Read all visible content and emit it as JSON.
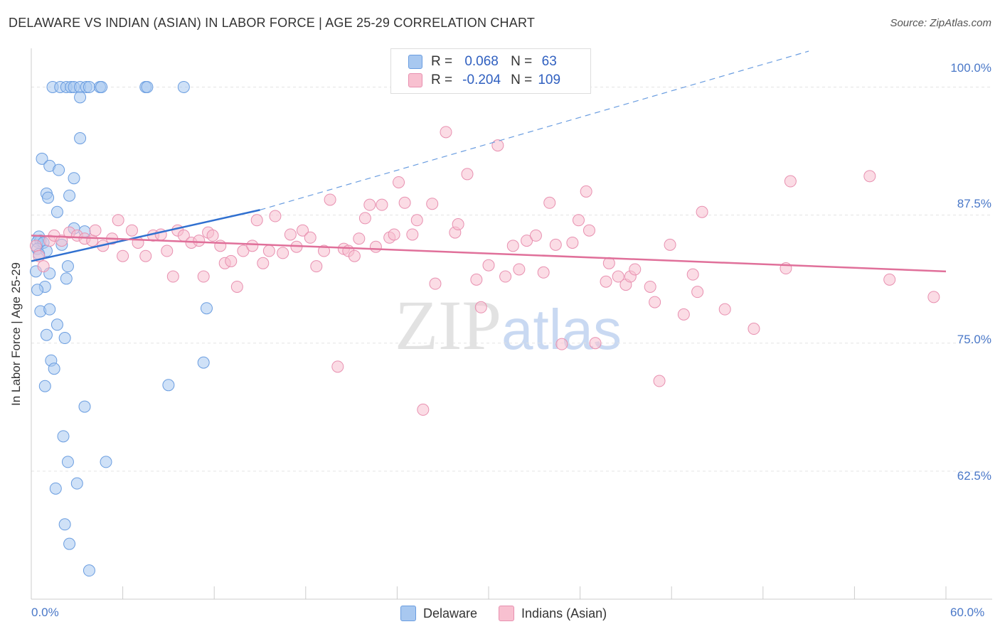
{
  "title": "DELAWARE VS INDIAN (ASIAN) IN LABOR FORCE | AGE 25-29 CORRELATION CHART",
  "source": "Source: ZipAtlas.com",
  "watermark": {
    "main": "ZIP",
    "sub": "atlas"
  },
  "legend": {
    "r_label": "R =",
    "n_label": "N =",
    "rows": [
      {
        "r": "0.068",
        "n": "63",
        "color": "#a8c8f0",
        "border": "#6a9de0"
      },
      {
        "r": "-0.204",
        "n": "109",
        "color": "#f8c0d0",
        "border": "#e890b0"
      }
    ]
  },
  "chart_data": {
    "type": "scatter",
    "xlabel": "",
    "ylabel": "In Labor Force | Age 25-29",
    "xlim": [
      0,
      60
    ],
    "ylim": [
      50,
      103.5
    ],
    "x_tick_labels": [
      "0.0%",
      "60.0%"
    ],
    "y_ticks": [
      62.5,
      75.0,
      87.5,
      100.0
    ],
    "y_tick_labels": [
      "62.5%",
      "75.0%",
      "87.5%",
      "100.0%"
    ],
    "grid": true,
    "series": [
      {
        "name": "Delaware",
        "color": "#a8c8f0",
        "stroke": "#6a9de0",
        "trend": {
          "x0": 0,
          "y0": 83.0,
          "x1": 15,
          "y1": 88.0,
          "dash_to_x": 51,
          "dash_to_y": 103.5
        },
        "points": [
          [
            1.4,
            100
          ],
          [
            1.9,
            100
          ],
          [
            2.3,
            100
          ],
          [
            2.6,
            100
          ],
          [
            2.8,
            100
          ],
          [
            3.2,
            100
          ],
          [
            3.6,
            100
          ],
          [
            3.8,
            100
          ],
          [
            4.5,
            100
          ],
          [
            4.6,
            100
          ],
          [
            7.5,
            100
          ],
          [
            7.6,
            100
          ],
          [
            10.0,
            100
          ],
          [
            3.2,
            99
          ],
          [
            3.2,
            95
          ],
          [
            0.7,
            93
          ],
          [
            1.2,
            92.3
          ],
          [
            1.8,
            91.9
          ],
          [
            2.8,
            91.1
          ],
          [
            1.0,
            89.6
          ],
          [
            1.1,
            89.2
          ],
          [
            2.5,
            89.4
          ],
          [
            1.7,
            87.8
          ],
          [
            2.8,
            86.2
          ],
          [
            3.5,
            85.9
          ],
          [
            0.5,
            85.4
          ],
          [
            0.6,
            85.0
          ],
          [
            0.4,
            84.9
          ],
          [
            0.8,
            84.8
          ],
          [
            2.0,
            84.6
          ],
          [
            0.4,
            84.2
          ],
          [
            1.0,
            84.0
          ],
          [
            0.5,
            83.7
          ],
          [
            2.4,
            82.5
          ],
          [
            0.3,
            82.0
          ],
          [
            1.2,
            81.8
          ],
          [
            2.3,
            81.3
          ],
          [
            0.9,
            80.5
          ],
          [
            0.4,
            80.2
          ],
          [
            0.6,
            78.1
          ],
          [
            1.2,
            78.3
          ],
          [
            11.5,
            78.4
          ],
          [
            1.7,
            76.8
          ],
          [
            1.0,
            75.8
          ],
          [
            2.2,
            75.5
          ],
          [
            1.3,
            73.3
          ],
          [
            1.5,
            72.5
          ],
          [
            11.3,
            73.1
          ],
          [
            0.9,
            70.8
          ],
          [
            9.0,
            70.9
          ],
          [
            3.5,
            68.8
          ],
          [
            2.1,
            65.9
          ],
          [
            2.4,
            63.4
          ],
          [
            4.9,
            63.4
          ],
          [
            1.6,
            60.8
          ],
          [
            3.0,
            61.3
          ],
          [
            2.2,
            57.3
          ],
          [
            2.5,
            55.4
          ],
          [
            3.8,
            52.8
          ]
        ]
      },
      {
        "name": "Indians (Asian)",
        "color": "#f8c0d0",
        "stroke": "#e890b0",
        "trend": {
          "x0": 0,
          "y0": 85.5,
          "x1": 60,
          "y1": 82.0
        },
        "points": [
          [
            0.3,
            84.5
          ],
          [
            0.5,
            83.5
          ],
          [
            0.8,
            82.5
          ],
          [
            1.2,
            85.0
          ],
          [
            1.5,
            85.5
          ],
          [
            2.0,
            85.0
          ],
          [
            2.5,
            85.8
          ],
          [
            3.0,
            85.5
          ],
          [
            3.5,
            85.2
          ],
          [
            4.0,
            85.0
          ],
          [
            4.2,
            86.0
          ],
          [
            4.7,
            84.5
          ],
          [
            5.3,
            85.2
          ],
          [
            5.7,
            87.0
          ],
          [
            6.0,
            83.5
          ],
          [
            6.6,
            86.0
          ],
          [
            7.0,
            84.8
          ],
          [
            7.5,
            83.5
          ],
          [
            8.0,
            85.5
          ],
          [
            8.5,
            85.6
          ],
          [
            8.9,
            84.0
          ],
          [
            9.3,
            81.5
          ],
          [
            9.6,
            86.0
          ],
          [
            10.0,
            85.5
          ],
          [
            10.5,
            84.8
          ],
          [
            11.0,
            85.0
          ],
          [
            11.3,
            81.5
          ],
          [
            11.6,
            85.8
          ],
          [
            11.9,
            85.5
          ],
          [
            12.4,
            84.5
          ],
          [
            12.7,
            82.8
          ],
          [
            13.1,
            83.0
          ],
          [
            13.5,
            80.5
          ],
          [
            13.9,
            84.0
          ],
          [
            14.5,
            84.5
          ],
          [
            14.8,
            87.0
          ],
          [
            15.2,
            82.8
          ],
          [
            15.6,
            84.0
          ],
          [
            16.0,
            87.4
          ],
          [
            16.5,
            83.8
          ],
          [
            17.0,
            85.6
          ],
          [
            17.4,
            84.4
          ],
          [
            17.8,
            86.0
          ],
          [
            18.3,
            85.3
          ],
          [
            18.7,
            82.5
          ],
          [
            19.2,
            84.0
          ],
          [
            19.6,
            89.0
          ],
          [
            20.1,
            72.7
          ],
          [
            20.5,
            84.2
          ],
          [
            20.8,
            84.0
          ],
          [
            21.2,
            83.5
          ],
          [
            21.5,
            85.2
          ],
          [
            21.9,
            87.2
          ],
          [
            22.2,
            88.5
          ],
          [
            22.6,
            84.4
          ],
          [
            23.0,
            88.5
          ],
          [
            23.5,
            85.3
          ],
          [
            23.8,
            85.6
          ],
          [
            24.1,
            90.7
          ],
          [
            24.5,
            88.7
          ],
          [
            25.0,
            85.6
          ],
          [
            25.3,
            87.0
          ],
          [
            25.7,
            68.5
          ],
          [
            26.3,
            88.6
          ],
          [
            26.5,
            80.8
          ],
          [
            27.2,
            95.6
          ],
          [
            27.8,
            85.8
          ],
          [
            28.0,
            86.6
          ],
          [
            28.6,
            91.5
          ],
          [
            29.2,
            81.2
          ],
          [
            29.5,
            78.5
          ],
          [
            30.0,
            82.6
          ],
          [
            30.6,
            94.3
          ],
          [
            31.1,
            81.5
          ],
          [
            31.6,
            84.5
          ],
          [
            32.0,
            82.2
          ],
          [
            32.5,
            85.0
          ],
          [
            33.1,
            85.5
          ],
          [
            33.6,
            81.9
          ],
          [
            34.0,
            88.7
          ],
          [
            34.4,
            84.6
          ],
          [
            34.8,
            74.9
          ],
          [
            35.5,
            84.8
          ],
          [
            35.9,
            87.0
          ],
          [
            36.4,
            89.8
          ],
          [
            36.6,
            86.0
          ],
          [
            37.0,
            75.0
          ],
          [
            37.7,
            81.0
          ],
          [
            37.9,
            82.8
          ],
          [
            38.5,
            81.5
          ],
          [
            39.0,
            80.7
          ],
          [
            39.3,
            81.5
          ],
          [
            39.6,
            82.2
          ],
          [
            40.6,
            80.5
          ],
          [
            40.9,
            79.0
          ],
          [
            41.2,
            71.3
          ],
          [
            41.9,
            84.6
          ],
          [
            42.8,
            77.8
          ],
          [
            43.4,
            81.7
          ],
          [
            43.7,
            80.0
          ],
          [
            44.0,
            87.8
          ],
          [
            45.5,
            78.3
          ],
          [
            47.4,
            76.4
          ],
          [
            49.5,
            82.3
          ],
          [
            49.8,
            90.8
          ],
          [
            55.0,
            91.3
          ],
          [
            56.3,
            81.2
          ],
          [
            59.2,
            79.5
          ]
        ]
      }
    ]
  }
}
